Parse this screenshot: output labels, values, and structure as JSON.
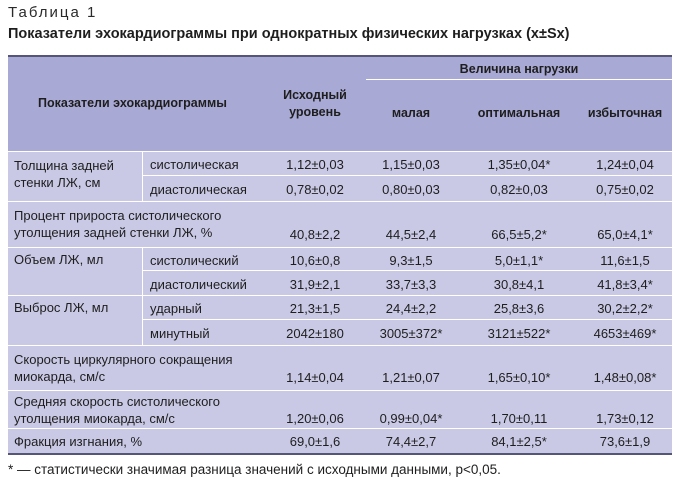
{
  "table_label": "Таблица 1",
  "title": "Показатели эхокардиограммы при однократных физических нагрузках (x±Sx)",
  "headers": {
    "indicators": "Показатели эхокардиограммы",
    "baseline": "Исходный уровень",
    "load": "Величина нагрузки",
    "small": "малая",
    "optimal": "оптимальная",
    "excessive": "избыточная"
  },
  "rows": [
    {
      "group": "Толщина задней стенки ЛЖ, см",
      "sub": "систолическая",
      "baseline": "1,12±0,03",
      "small": "1,15±0,03",
      "optimal": "1,35±0,04*",
      "excessive": "1,24±0,04"
    },
    {
      "sub": "диастолическая",
      "baseline": "0,78±0,02",
      "small": "0,80±0,03",
      "optimal": "0,82±0,03",
      "excessive": "0,75±0,02"
    },
    {
      "group": "Процент прироста систолического утолщения задней стенки ЛЖ, %",
      "baseline": "40,8±2,2",
      "small": "44,5±2,4",
      "optimal": "66,5±5,2*",
      "excessive": "65,0±4,1*"
    },
    {
      "group": "Объем ЛЖ, мл",
      "sub": "систолический",
      "baseline": "10,6±0,8",
      "small": "9,3±1,5",
      "optimal": "5,0±1,1*",
      "excessive": "11,6±1,5"
    },
    {
      "sub": "диастолический",
      "baseline": "31,9±2,1",
      "small": "33,7±3,3",
      "optimal": "30,8±4,1",
      "excessive": "41,8±3,4*"
    },
    {
      "group": "Выброс ЛЖ, мл",
      "sub": "ударный",
      "baseline": "21,3±1,5",
      "small": "24,4±2,2",
      "optimal": "25,8±3,6",
      "excessive": "30,2±2,2*"
    },
    {
      "sub": "минутный",
      "baseline": "2042±180",
      "small": "3005±372*",
      "optimal": "3121±522*",
      "excessive": "4653±469*"
    },
    {
      "group": "Скорость циркулярного сокращения миокарда, см/с",
      "baseline": "1,14±0,04",
      "small": "1,21±0,07",
      "optimal": "1,65±0,10*",
      "excessive": "1,48±0,08*"
    },
    {
      "group": "Средняя скорость систолического утолщения миокарда, см/с",
      "baseline": "1,20±0,06",
      "small": "0,99±0,04*",
      "optimal": "1,70±0,11",
      "excessive": "1,73±0,12"
    },
    {
      "group": "Фракция изгнания, %",
      "baseline": "69,0±1,6",
      "small": "74,4±2,7",
      "optimal": "84,1±2,5*",
      "excessive": "73,6±1,9"
    }
  ],
  "footnote": "* — статистически значимая разница значений с исходными данными, p<0,05."
}
